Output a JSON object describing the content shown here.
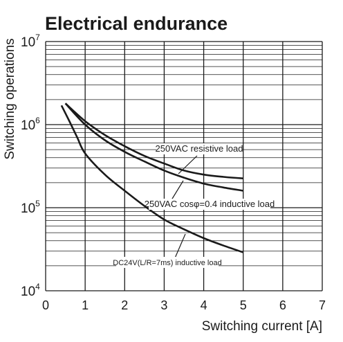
{
  "chart_data": {
    "type": "line",
    "title": "Electrical endurance",
    "xlabel": "Switching current [A]",
    "ylabel": "Switching operations",
    "xlim": [
      0,
      7
    ],
    "ylim": [
      10000,
      10000000
    ],
    "yscale": "log",
    "grid": true,
    "xticks": [
      "0",
      "1",
      "2",
      "3",
      "4",
      "5",
      "6",
      "7"
    ],
    "yticks": [
      {
        "base": "10",
        "exp": "4"
      },
      {
        "base": "10",
        "exp": "5"
      },
      {
        "base": "10",
        "exp": "6"
      },
      {
        "base": "10",
        "exp": "7"
      }
    ],
    "series": [
      {
        "name": "250VAC resistive load",
        "x": [
          0.5,
          1.0,
          1.5,
          2.0,
          2.5,
          3.0,
          3.5,
          4.0,
          4.5,
          5.0
        ],
        "y": [
          1800000,
          1100000,
          750000,
          550000,
          420000,
          340000,
          280000,
          250000,
          235000,
          225000
        ]
      },
      {
        "name": "250VAC cosφ=0.4 inductive load",
        "x": [
          0.5,
          1.0,
          1.5,
          2.0,
          2.5,
          3.0,
          3.5,
          4.0,
          4.5,
          5.0
        ],
        "y": [
          1800000,
          1000000,
          650000,
          470000,
          360000,
          280000,
          230000,
          195000,
          175000,
          160000
        ]
      },
      {
        "name": "DC24V(L/R=7ms) inductive load",
        "x": [
          0.4,
          0.6,
          0.8,
          1.0,
          1.5,
          2.0,
          2.5,
          3.0,
          3.5,
          4.0,
          4.5,
          5.0
        ],
        "y": [
          1700000,
          1100000,
          700000,
          450000,
          250000,
          160000,
          105000,
          72000,
          55000,
          43000,
          35000,
          29000
        ]
      }
    ],
    "annotations": [
      "250VAC resistive load",
      "250VAC cosφ=0.4 inductive load",
      "DC24V(L/R=7ms) inductive load"
    ]
  }
}
